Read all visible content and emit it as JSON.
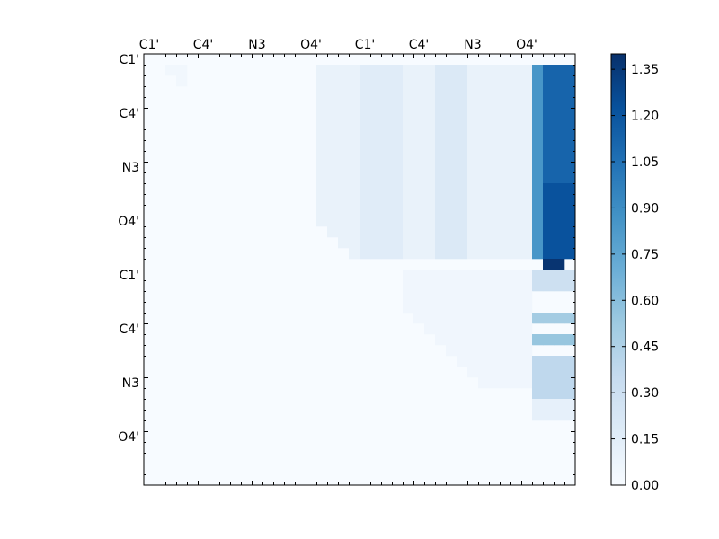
{
  "chart_data": {
    "type": "heatmap",
    "title": "",
    "xlabel": "",
    "ylabel": "",
    "colormap": "Blues",
    "color_low": "#f7fbff",
    "color_high": "#08306b",
    "x_tick_labels": [
      "C1'",
      "C4'",
      "N3",
      "O4'",
      "C1'",
      "C4'",
      "N3",
      "O4'"
    ],
    "y_tick_labels": [
      "C1'",
      "C4'",
      "N3",
      "O4'",
      "C1'",
      "C4'",
      "N3",
      "O4'"
    ],
    "colorbar": {
      "min": 0.0,
      "max": 1.4,
      "tick_values": [
        0.0,
        0.15,
        0.3,
        0.45,
        0.6,
        0.75,
        0.9,
        1.05,
        1.2,
        1.35
      ],
      "tick_labels": [
        "0.00",
        "0.15",
        "0.30",
        "0.45",
        "0.60",
        "0.75",
        "0.90",
        "1.05",
        "1.20",
        "1.35"
      ]
    },
    "grid_size": 40,
    "matrix_lower_triangle": "empty",
    "matrix_regions": [
      {
        "rows": [
          1,
          7
        ],
        "cols": [
          2,
          4
        ],
        "value": 0.04,
        "note": "upper diagonal band, block 1"
      },
      {
        "rows": [
          1,
          19
        ],
        "cols": [
          16,
          36
        ],
        "value": 0.1,
        "note": "block 1 vs block 2 background"
      },
      {
        "rows": [
          1,
          19
        ],
        "cols": [
          20,
          24
        ],
        "value": 0.16
      },
      {
        "rows": [
          1,
          19
        ],
        "cols": [
          27,
          30
        ],
        "value": 0.2
      },
      {
        "rows": [
          1,
          19
        ],
        "cols": [
          36,
          37
        ],
        "value": 0.85
      },
      {
        "rows": [
          1,
          19
        ],
        "cols": [
          37,
          40
        ],
        "value": 1.12
      },
      {
        "rows": [
          12,
          19
        ],
        "cols": [
          37,
          40
        ],
        "value": 1.22
      },
      {
        "rows": [
          19,
          20
        ],
        "cols": [
          37,
          39
        ],
        "value": 1.38
      },
      {
        "rows": [
          20,
          31
        ],
        "cols": [
          24,
          36
        ],
        "value": 0.05,
        "note": "upper diagonal band, block 2"
      },
      {
        "rows": [
          20,
          22
        ],
        "cols": [
          36,
          40
        ],
        "value": 0.3
      },
      {
        "rows": [
          24,
          25
        ],
        "cols": [
          36,
          40
        ],
        "value": 0.5
      },
      {
        "rows": [
          26,
          27
        ],
        "cols": [
          36,
          40
        ],
        "value": 0.55
      },
      {
        "rows": [
          28,
          32
        ],
        "cols": [
          36,
          40
        ],
        "value": 0.38
      },
      {
        "rows": [
          32,
          34
        ],
        "cols": [
          36,
          40
        ],
        "value": 0.12
      }
    ]
  }
}
